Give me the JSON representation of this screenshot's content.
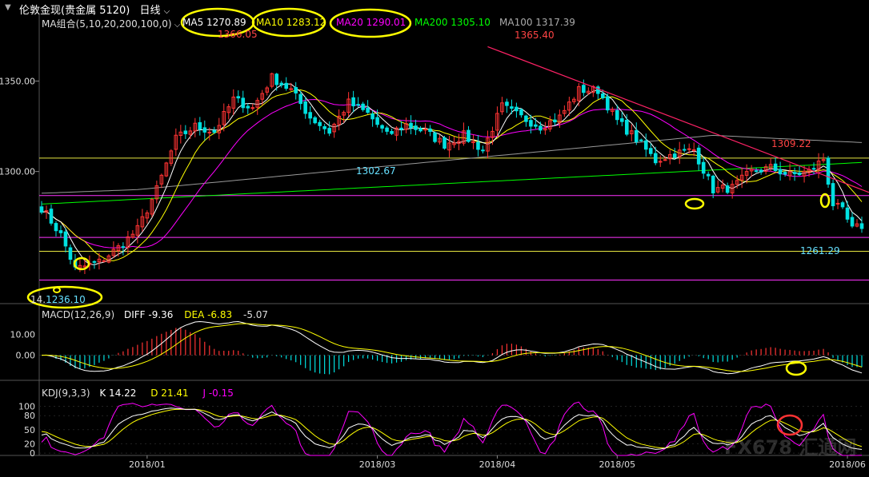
{
  "window": {
    "title": "伦敦金现(贵金属 5120)",
    "period": "日线"
  },
  "main_panel": {
    "ma_group_label": "MA组合(5,10,20,200,100,0)",
    "ma_values": [
      {
        "name": "MA5",
        "value": "1270.89",
        "color": "#ffffff"
      },
      {
        "name": "MA10",
        "value": "1283.12",
        "color": "#ffff00"
      },
      {
        "name": "MA20",
        "value": "1290.01",
        "color": "#ff00ff"
      },
      {
        "name": "MA200",
        "value": "1305.10",
        "color": "#00ff00"
      },
      {
        "name": "MA100",
        "value": "1317.39",
        "color": "#aaaaaa"
      }
    ],
    "y_ticks": [
      "1350.00",
      "1300.00"
    ],
    "annotations": {
      "high1": "1366.05",
      "high2": "1365.40",
      "mid_low": "1302.67",
      "swing_high": "1309.22",
      "recent_low": "1261.29",
      "first_low": "1236.10",
      "partial_text": "14."
    }
  },
  "macd_panel": {
    "label": "MACD(12,26,9)",
    "diff": "DIFF -9.36",
    "dea": "DEA -6.83",
    "macd": "-5.07",
    "y_ticks": [
      "10.00",
      "0.00"
    ]
  },
  "kdj_panel": {
    "label": "KDJ(9,3,3)",
    "k": "K 14.22",
    "d": "D 21.41",
    "j": "J -0.15",
    "y_ticks": [
      "100",
      "80",
      "50",
      "20",
      "0"
    ]
  },
  "x_axis": {
    "labels": [
      "2018/01",
      "2018/03",
      "2018/04",
      "2018/05",
      "2018/06"
    ]
  },
  "watermark": "FX678 汇通网",
  "colors": {
    "up": "#ff3333",
    "down": "#00e0e0",
    "ma5": "#ffffff",
    "ma10": "#ffff00",
    "ma20": "#ff00ff",
    "ma200": "#00ff00",
    "ma100": "#999999",
    "trendline": "#ff2266",
    "highlight": "#ffff00"
  },
  "chart_data": {
    "type": "line",
    "anchors": [
      {
        "x": 0,
        "close": 1280
      },
      {
        "x": 4,
        "close": 1265
      },
      {
        "x": 7,
        "close": 1246
      },
      {
        "x": 12,
        "close": 1250
      },
      {
        "x": 16,
        "close": 1258
      },
      {
        "x": 20,
        "close": 1268
      },
      {
        "x": 24,
        "close": 1290
      },
      {
        "x": 28,
        "close": 1318
      },
      {
        "x": 32,
        "close": 1325
      },
      {
        "x": 36,
        "close": 1322
      },
      {
        "x": 40,
        "close": 1340
      },
      {
        "x": 44,
        "close": 1335
      },
      {
        "x": 48,
        "close": 1352
      },
      {
        "x": 52,
        "close": 1345
      },
      {
        "x": 56,
        "close": 1330
      },
      {
        "x": 60,
        "close": 1322
      },
      {
        "x": 64,
        "close": 1338
      },
      {
        "x": 68,
        "close": 1332
      },
      {
        "x": 72,
        "close": 1320
      },
      {
        "x": 76,
        "close": 1326
      },
      {
        "x": 80,
        "close": 1322
      },
      {
        "x": 84,
        "close": 1315
      },
      {
        "x": 88,
        "close": 1320
      },
      {
        "x": 92,
        "close": 1312
      },
      {
        "x": 96,
        "close": 1336
      },
      {
        "x": 100,
        "close": 1330
      },
      {
        "x": 104,
        "close": 1325
      },
      {
        "x": 108,
        "close": 1330
      },
      {
        "x": 112,
        "close": 1345
      },
      {
        "x": 116,
        "close": 1345
      },
      {
        "x": 120,
        "close": 1328
      },
      {
        "x": 124,
        "close": 1318
      },
      {
        "x": 128,
        "close": 1306
      },
      {
        "x": 132,
        "close": 1310
      },
      {
        "x": 136,
        "close": 1312
      },
      {
        "x": 140,
        "close": 1290
      },
      {
        "x": 144,
        "close": 1291
      },
      {
        "x": 148,
        "close": 1300
      },
      {
        "x": 152,
        "close": 1302
      },
      {
        "x": 156,
        "close": 1298
      },
      {
        "x": 160,
        "close": 1300
      },
      {
        "x": 163,
        "close": 1307
      },
      {
        "x": 165,
        "close": 1282
      },
      {
        "x": 167,
        "close": 1278
      },
      {
        "x": 169,
        "close": 1268
      },
      {
        "x": 171,
        "close": 1270
      }
    ],
    "x_range": [
      0,
      171
    ],
    "ylim": [
      1227,
      1378
    ],
    "series_names": [
      "MA5",
      "MA10",
      "MA20",
      "MA200",
      "MA100"
    ],
    "horizontal_levels": [
      {
        "value": 1307.4,
        "color": "#e6e640"
      },
      {
        "value": 1286.7,
        "color": "#ff33ff"
      },
      {
        "value": 1263.6,
        "color": "#ff33ff"
      },
      {
        "value": 1255.9,
        "color": "#e6e640"
      },
      {
        "value": 1240.0,
        "color": "#ff33ff"
      }
    ],
    "trendline": {
      "from": {
        "x": 98,
        "value": 1369
      },
      "to": {
        "x": 171,
        "value": 1292
      }
    },
    "macd_ylim": [
      -12,
      17
    ],
    "kdj_ylim": [
      -5,
      118
    ],
    "x_label_positions": [
      22,
      70,
      95,
      120,
      168
    ]
  }
}
